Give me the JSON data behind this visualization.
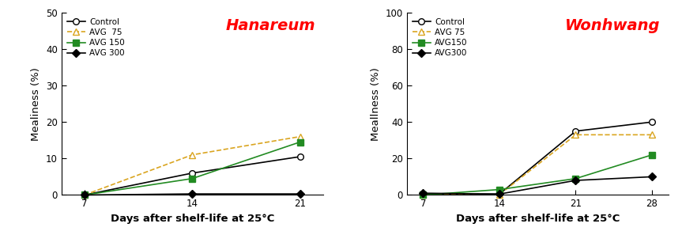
{
  "left": {
    "title": "Hanareum",
    "xlabel": "Days after shelf-life at 25°C",
    "ylabel": "Mealiness (%)",
    "ylim": [
      0,
      50
    ],
    "yticks": [
      0,
      10,
      20,
      30,
      40,
      50
    ],
    "xticks": [
      7,
      14,
      21
    ],
    "series": [
      {
        "label": "Control",
        "x": [
          7,
          14,
          21
        ],
        "y": [
          0,
          6,
          10.5
        ],
        "color": "#000000",
        "marker": "o",
        "mfc": "white",
        "ls": "-"
      },
      {
        "label": "AVG  75",
        "x": [
          7,
          14,
          21
        ],
        "y": [
          0,
          11,
          16
        ],
        "color": "#DAA520",
        "marker": "^",
        "mfc": "white",
        "ls": "--"
      },
      {
        "label": "AVG 150",
        "x": [
          7,
          14,
          21
        ],
        "y": [
          0,
          4.5,
          14.5
        ],
        "color": "#228B22",
        "marker": "s",
        "mfc": "#228B22",
        "ls": "-"
      },
      {
        "label": "AVG 300",
        "x": [
          7,
          14,
          21
        ],
        "y": [
          0,
          0.3,
          0.3
        ],
        "color": "#000000",
        "marker": "D",
        "mfc": "#000000",
        "ls": "-"
      }
    ],
    "xlim": [
      5.5,
      22.5
    ]
  },
  "right": {
    "title": "Wonhwang",
    "xlabel": "Days after shelf-life at 25°C",
    "ylabel": "Meallness (%)",
    "ylim": [
      0,
      100
    ],
    "yticks": [
      0,
      20,
      40,
      60,
      80,
      100
    ],
    "xticks": [
      7,
      14,
      21,
      28
    ],
    "series": [
      {
        "label": "Control",
        "x": [
          7,
          14,
          21,
          28
        ],
        "y": [
          0.5,
          0.5,
          35,
          40
        ],
        "color": "#000000",
        "marker": "o",
        "mfc": "white",
        "ls": "-"
      },
      {
        "label": "AVG 75",
        "x": [
          7,
          14,
          21,
          28
        ],
        "y": [
          0.2,
          0.2,
          33,
          33
        ],
        "color": "#DAA520",
        "marker": "^",
        "mfc": "white",
        "ls": "--"
      },
      {
        "label": "AVG150",
        "x": [
          7,
          14,
          21,
          28
        ],
        "y": [
          0,
          3,
          9,
          22
        ],
        "color": "#228B22",
        "marker": "s",
        "mfc": "#228B22",
        "ls": "-"
      },
      {
        "label": "AVG300",
        "x": [
          7,
          14,
          21,
          28
        ],
        "y": [
          1,
          0.5,
          8,
          10
        ],
        "color": "#000000",
        "marker": "D",
        "mfc": "#000000",
        "ls": "-"
      }
    ],
    "xlim": [
      5.5,
      29.5
    ]
  },
  "bg_color": "#ffffff",
  "title_color": "#ff0000",
  "title_fontsize": 14,
  "legend_fontsize": 7.5,
  "tick_fontsize": 8.5,
  "label_fontsize": 9.5,
  "linewidth": 1.2,
  "markersize": 5.5
}
